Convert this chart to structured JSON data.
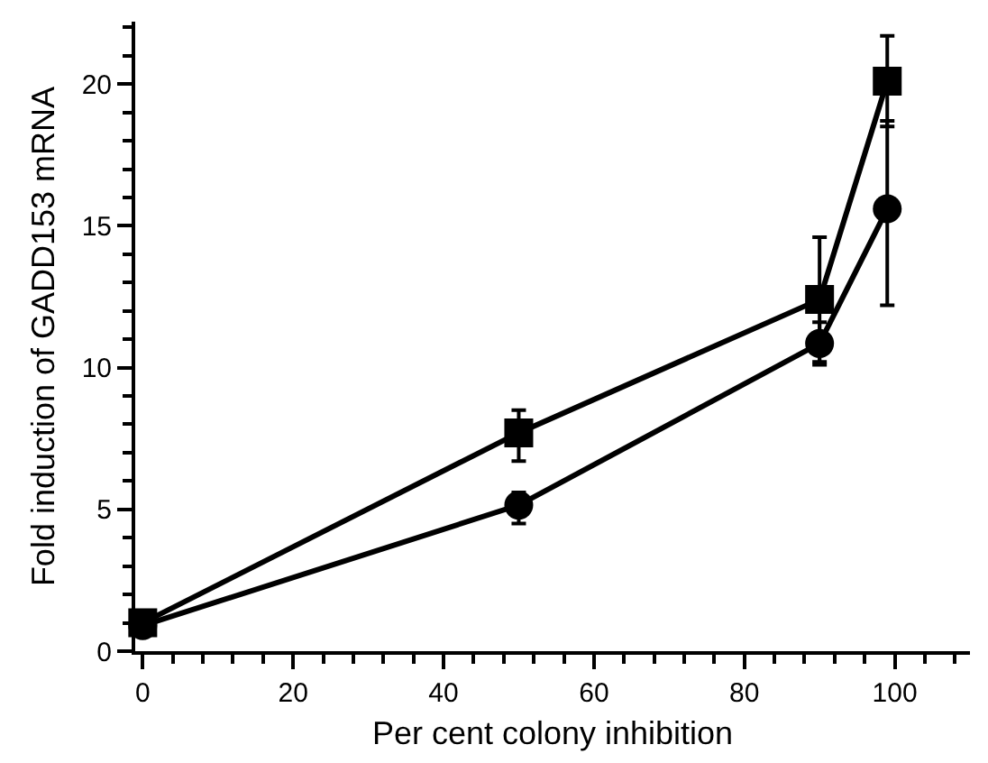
{
  "chart_data": {
    "type": "line",
    "xlabel": "Per cent colony inhibition",
    "ylabel": "Fold induction of GADD153 mRNA",
    "xlim": [
      -1,
      110
    ],
    "ylim": [
      0,
      22.2
    ],
    "xticks": [
      0,
      {
        "value": 4,
        "label": null
      },
      {
        "value": 8,
        "label": null
      },
      {
        "value": 12,
        "label": null
      },
      {
        "value": 16,
        "label": null
      },
      20,
      {
        "value": 24,
        "label": null
      },
      {
        "value": 28,
        "label": null
      },
      {
        "value": 32,
        "label": null
      },
      {
        "value": 36,
        "label": null
      },
      40,
      {
        "value": 44,
        "label": null
      },
      {
        "value": 48,
        "label": null
      },
      {
        "value": 52,
        "label": null
      },
      {
        "value": 56,
        "label": null
      },
      60,
      {
        "value": 64,
        "label": null
      },
      {
        "value": 68,
        "label": null
      },
      {
        "value": 72,
        "label": null
      },
      {
        "value": 76,
        "label": null
      },
      80,
      {
        "value": 84,
        "label": null
      },
      {
        "value": 88,
        "label": null
      },
      {
        "value": 92,
        "label": null
      },
      {
        "value": 96,
        "label": null
      },
      100,
      {
        "value": 104,
        "label": null
      },
      {
        "value": 108,
        "label": null
      }
    ],
    "yticks": [
      0,
      {
        "value": 1,
        "label": null
      },
      {
        "value": 2,
        "label": null
      },
      {
        "value": 3,
        "label": null
      },
      {
        "value": 4,
        "label": null
      },
      5,
      {
        "value": 6,
        "label": null
      },
      {
        "value": 7,
        "label": null
      },
      {
        "value": 8,
        "label": null
      },
      {
        "value": 9,
        "label": null
      },
      10,
      {
        "value": 11,
        "label": null
      },
      {
        "value": 12,
        "label": null
      },
      {
        "value": 13,
        "label": null
      },
      {
        "value": 14,
        "label": null
      },
      15,
      {
        "value": 16,
        "label": null
      },
      {
        "value": 17,
        "label": null
      },
      {
        "value": 18,
        "label": null
      },
      {
        "value": 19,
        "label": null
      },
      20,
      {
        "value": 21,
        "label": null
      },
      {
        "value": 22,
        "label": null
      }
    ],
    "line_style": "solid",
    "x": [
      0,
      50,
      90,
      99
    ],
    "series": [
      {
        "color": "#000000",
        "marker": "square",
        "values": [
          1.0,
          7.7,
          12.4,
          20.1
        ],
        "errors": [
          null,
          [
            6.7,
            8.5
          ],
          [
            10.2,
            14.6
          ],
          [
            18.5,
            21.7
          ]
        ]
      },
      {
        "color": "#000000",
        "marker": "circle",
        "values": [
          0.9,
          5.15,
          10.85,
          15.6
        ],
        "errors": [
          null,
          [
            4.5,
            5.6
          ],
          [
            10.1,
            11.6
          ],
          [
            12.2,
            18.7
          ]
        ]
      }
    ]
  }
}
